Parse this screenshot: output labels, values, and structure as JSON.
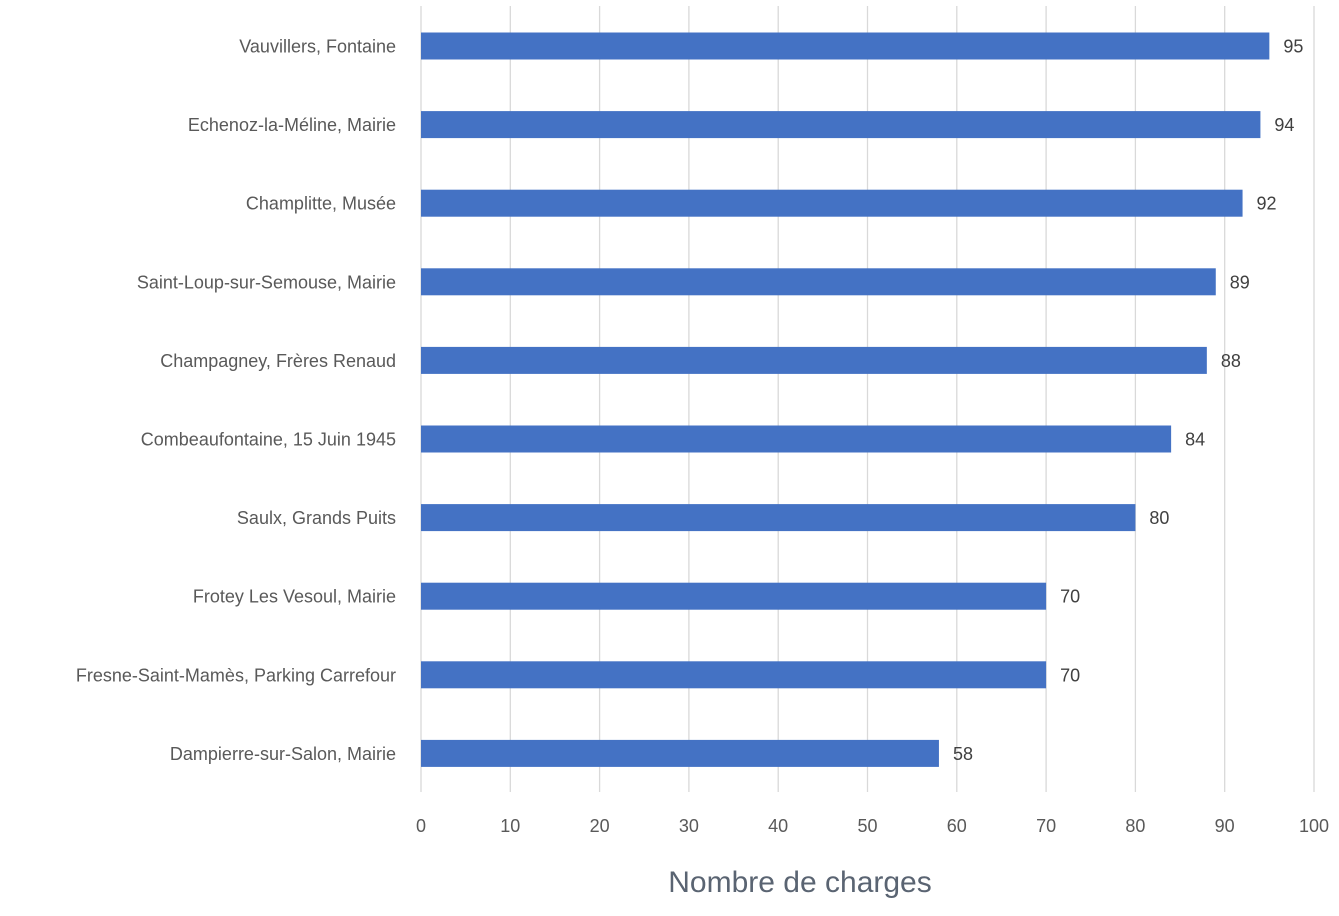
{
  "chart_data": {
    "type": "bar",
    "orientation": "horizontal",
    "categories": [
      "Vauvillers, Fontaine",
      "Echenoz-la-Méline, Mairie",
      "Champlitte, Musée",
      "Saint-Loup-sur-Semouse, Mairie",
      "Champagney, Frères Renaud",
      "Combeaufontaine, 15 Juin 1945",
      "Saulx, Grands Puits",
      "Frotey Les Vesoul, Mairie",
      "Fresne-Saint-Mamès, Parking Carrefour",
      "Dampierre-sur-Salon, Mairie"
    ],
    "values": [
      95,
      94,
      92,
      89,
      88,
      84,
      80,
      70,
      70,
      58
    ],
    "title": "",
    "xlabel": "Nombre de charges",
    "ylabel": "",
    "xlim": [
      0,
      100
    ],
    "xticks": [
      "0",
      "10",
      "20",
      "30",
      "40",
      "50",
      "60",
      "70",
      "80",
      "90",
      "100"
    ],
    "grid": true,
    "legend": "none",
    "data_labels": true,
    "bar_color": "#4472C4"
  }
}
